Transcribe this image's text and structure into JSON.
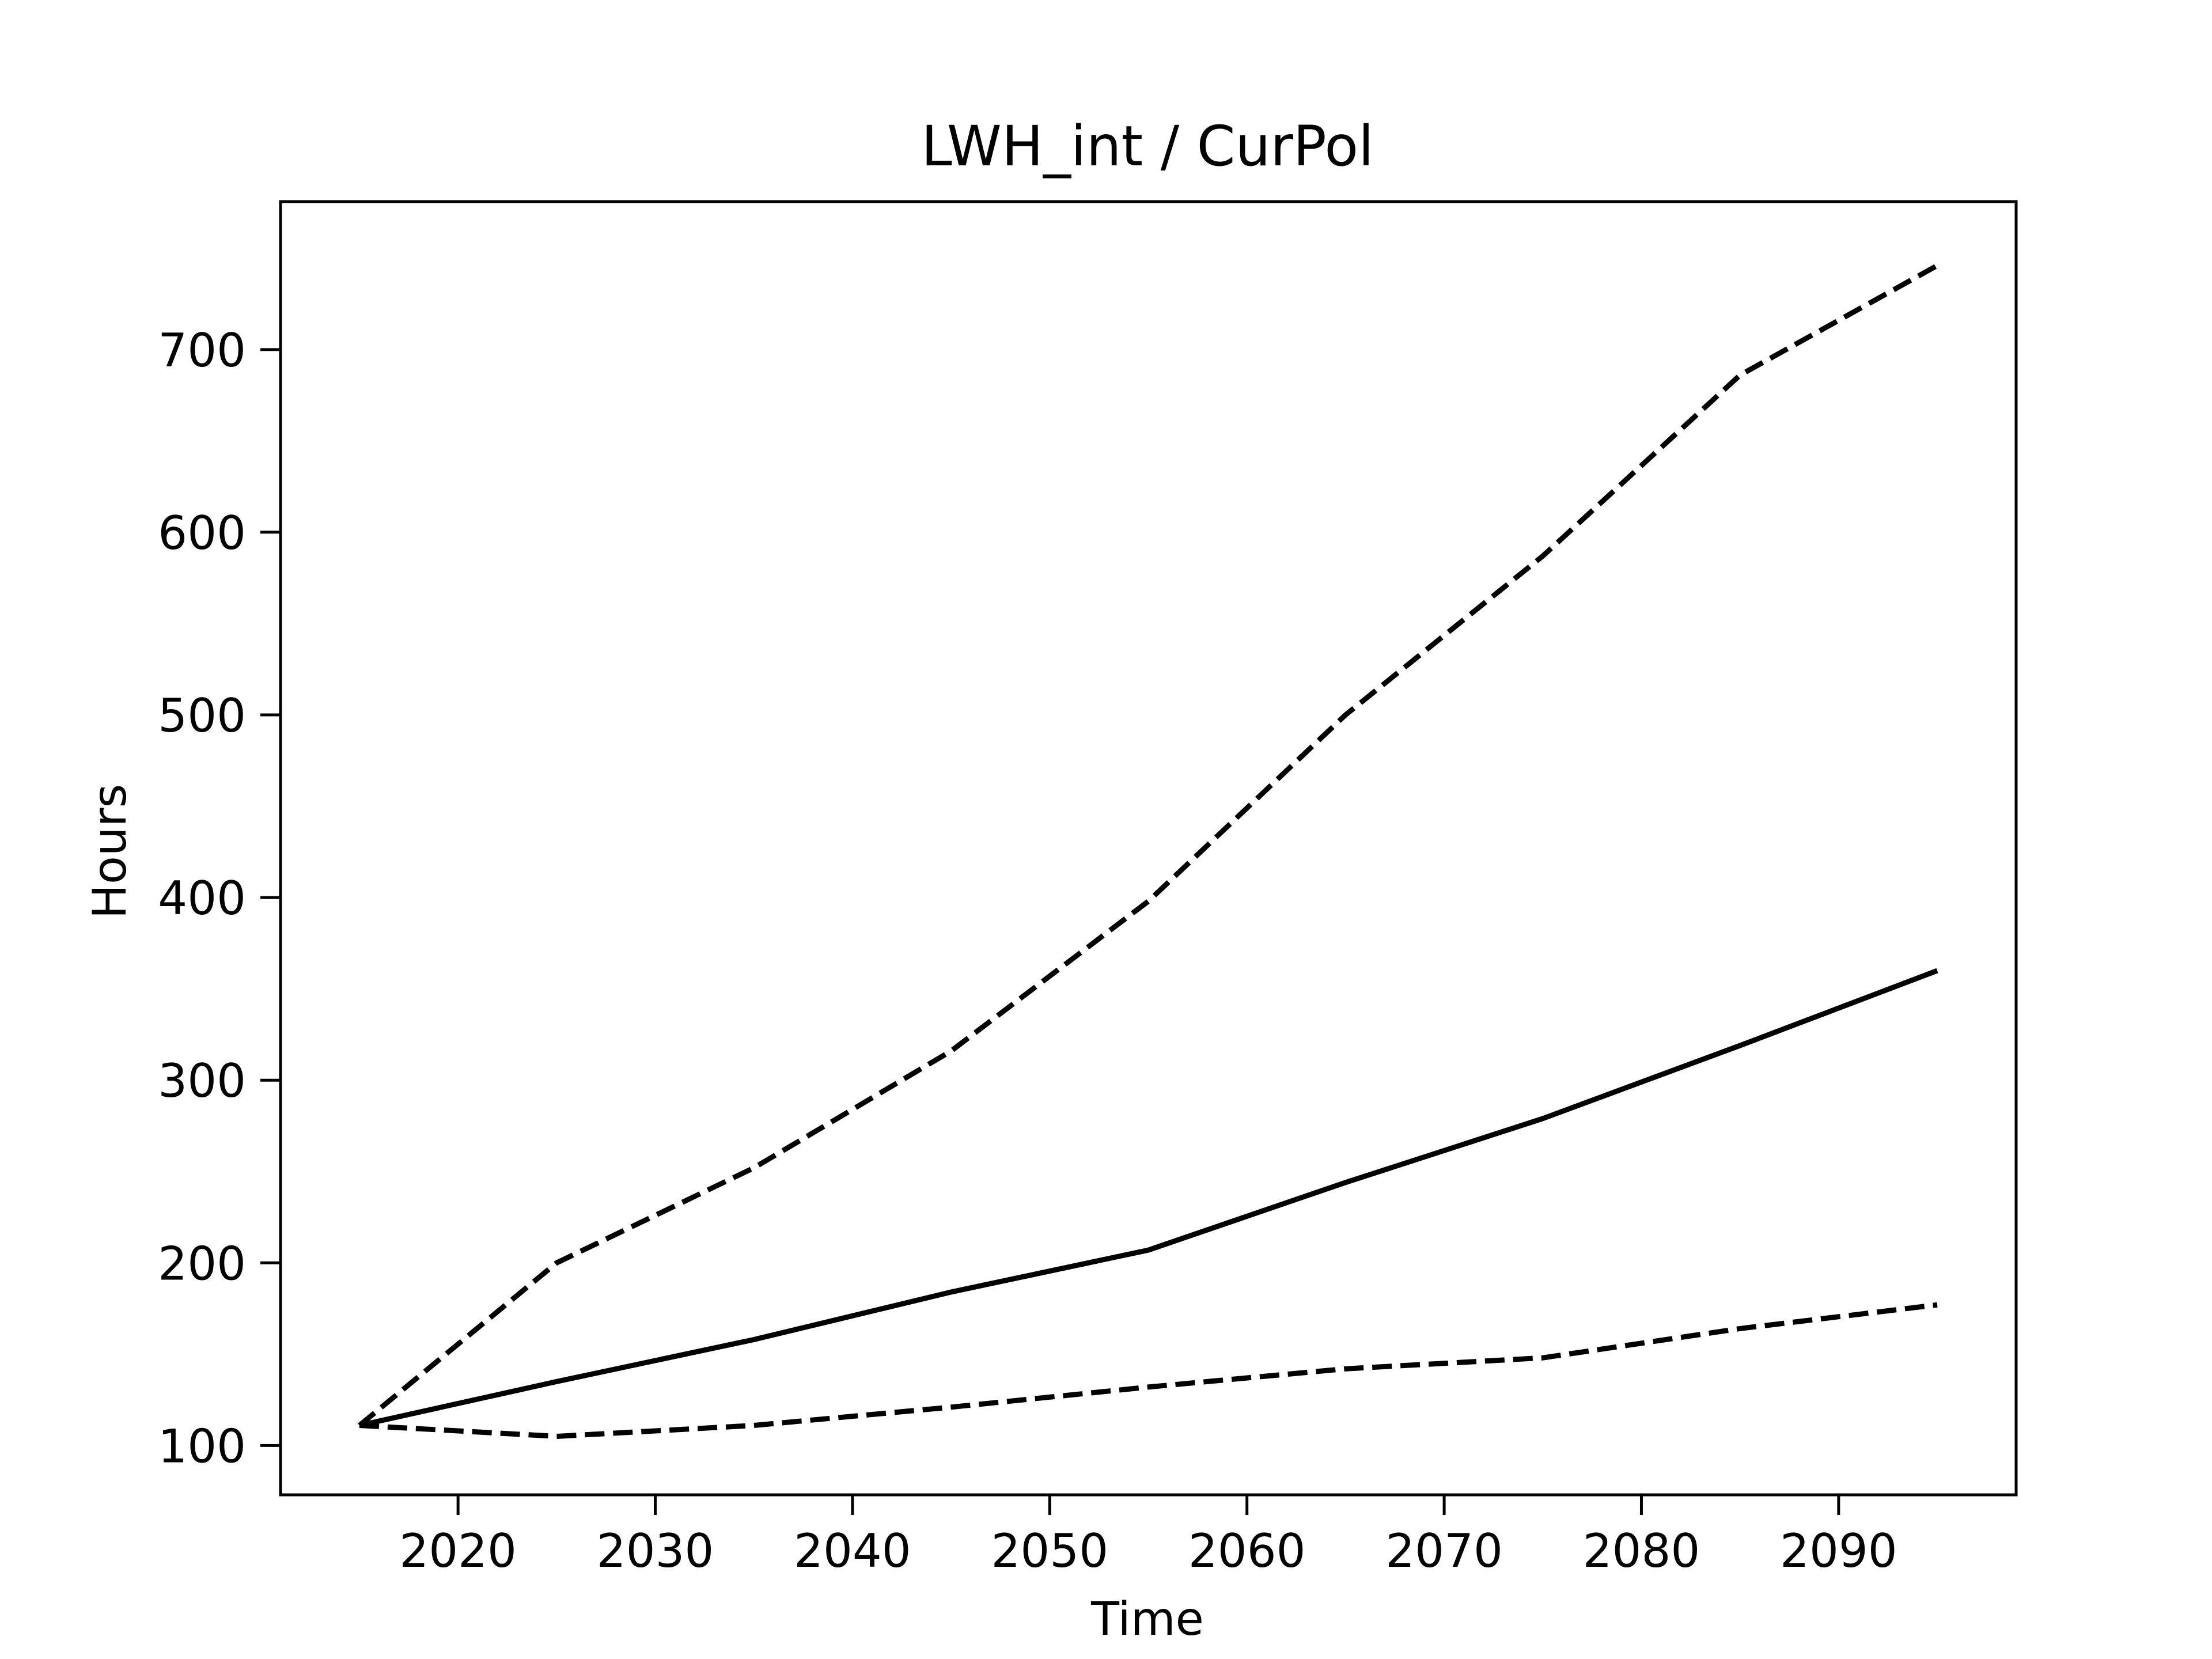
{
  "chart_data": {
    "type": "line",
    "title": "LWH_int / CurPol",
    "xlabel": "Time",
    "ylabel": "Hours",
    "xlim": [
      2011,
      2099
    ],
    "ylim": [
      73,
      781
    ],
    "grid": false,
    "xticks": [
      2020,
      2030,
      2040,
      2050,
      2060,
      2070,
      2080,
      2090
    ],
    "yticks": [
      100,
      200,
      300,
      400,
      500,
      600,
      700
    ],
    "x": [
      2015,
      2025,
      2035,
      2045,
      2055,
      2065,
      2075,
      2085,
      2095
    ],
    "series": [
      {
        "style": "dashed",
        "color": "#000000",
        "values": [
          111,
          200,
          252,
          316,
          398,
          500,
          587,
          686,
          746
        ]
      },
      {
        "style": "solid",
        "color": "#000000",
        "values": [
          111,
          135,
          158,
          184,
          207,
          244,
          279,
          319,
          360
        ]
      },
      {
        "style": "dashed",
        "color": "#000000",
        "values": [
          111,
          105,
          111,
          121,
          132,
          142,
          148,
          164,
          177
        ]
      }
    ]
  }
}
